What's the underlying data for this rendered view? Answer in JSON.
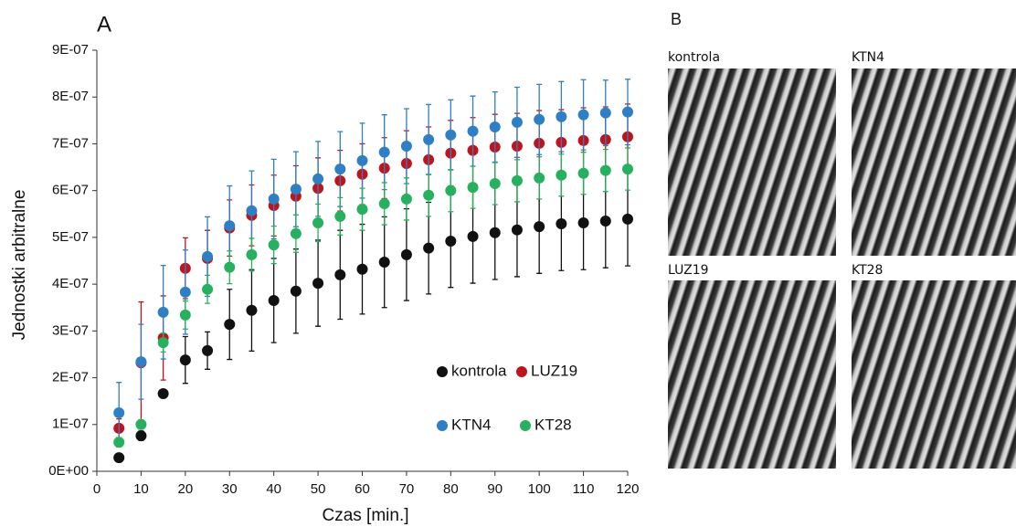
{
  "chart_data": {
    "type": "scatter",
    "panel_label": "A",
    "xlabel": "Czas [min.]",
    "ylabel": "Jednostki arbitralne",
    "x": [
      5,
      10,
      15,
      20,
      25,
      30,
      35,
      40,
      45,
      50,
      55,
      60,
      65,
      70,
      75,
      80,
      85,
      90,
      95,
      100,
      105,
      110,
      115,
      120
    ],
    "xlim": [
      0,
      120
    ],
    "xticks": [
      0,
      10,
      20,
      30,
      40,
      50,
      60,
      70,
      80,
      90,
      100,
      110,
      120
    ],
    "ylim": [
      0,
      9e-07
    ],
    "yticks": [
      {
        "value": 0,
        "label": "0E+00"
      },
      {
        "value": 1e-07,
        "label": "1E-07"
      },
      {
        "value": 2e-07,
        "label": "2E-07"
      },
      {
        "value": 3e-07,
        "label": "3E-07"
      },
      {
        "value": 4e-07,
        "label": "4E-07"
      },
      {
        "value": 5e-07,
        "label": "5E-07"
      },
      {
        "value": 6e-07,
        "label": "6E-07"
      },
      {
        "value": 7e-07,
        "label": "7E-07"
      },
      {
        "value": 8e-07,
        "label": "8E-07"
      },
      {
        "value": 9e-07,
        "label": "9E-07"
      }
    ],
    "series": [
      {
        "name": "kontrola",
        "color": "#111111",
        "values": [
          2.9e-08,
          7.6e-08,
          1.66e-07,
          2.38e-07,
          2.58e-07,
          3.14e-07,
          3.44e-07,
          3.65e-07,
          3.85e-07,
          4.02e-07,
          4.2e-07,
          4.32e-07,
          4.47e-07,
          4.63e-07,
          4.77e-07,
          4.92e-07,
          5.02e-07,
          5.1e-07,
          5.16e-07,
          5.23e-07,
          5.29e-07,
          5.31e-07,
          5.35e-07,
          5.39e-07
        ],
        "errors": [
          3e-09,
          1e-08,
          5e-09,
          5e-08,
          4e-08,
          7.5e-08,
          8.7e-08,
          9e-08,
          9e-08,
          9.2e-08,
          9.5e-08,
          9.6e-08,
          9.7e-08,
          9.8e-08,
          9.8e-08,
          9.9e-08,
          1e-07,
          1e-07,
          1e-07,
          1e-07,
          1e-07,
          1e-07,
          1e-07,
          1e-07
        ]
      },
      {
        "name": "LUZ19",
        "color": "#c0141c",
        "values": [
          9.2e-08,
          2.32e-07,
          2.85e-07,
          4.34e-07,
          4.55e-07,
          5.2e-07,
          5.47e-07,
          5.68e-07,
          5.88e-07,
          6.05e-07,
          6.21e-07,
          6.35e-07,
          6.48e-07,
          6.58e-07,
          6.66e-07,
          6.8e-07,
          6.86e-07,
          6.93e-07,
          6.95e-07,
          7.01e-07,
          7.03e-07,
          7.07e-07,
          7.09e-07,
          7.15e-07
        ],
        "errors": [
          2e-08,
          1.3e-07,
          9e-08,
          6.5e-08,
          6e-08,
          6e-08,
          6.5e-08,
          6.5e-08,
          6.5e-08,
          6.5e-08,
          6.5e-08,
          6.5e-08,
          6.5e-08,
          7e-08,
          7e-08,
          7e-08,
          7e-08,
          7e-08,
          7e-08,
          7e-08,
          7e-08,
          7e-08,
          7e-08,
          7e-08
        ]
      },
      {
        "name": "KTN4",
        "color": "#2e7fc4",
        "values": [
          1.25e-07,
          2.34e-07,
          3.4e-07,
          3.83e-07,
          4.59e-07,
          5.25e-07,
          5.57e-07,
          5.82e-07,
          6.03e-07,
          6.25e-07,
          6.46e-07,
          6.64e-07,
          6.82e-07,
          6.95e-07,
          7.09e-07,
          7.19e-07,
          7.27e-07,
          7.36e-07,
          7.46e-07,
          7.52e-07,
          7.58e-07,
          7.62e-07,
          7.66e-07,
          7.68e-07
        ],
        "errors": [
          6.5e-08,
          8e-08,
          1e-07,
          9e-08,
          8.5e-08,
          8.5e-08,
          8.5e-08,
          8.5e-08,
          8e-08,
          8e-08,
          8e-08,
          8e-08,
          8e-08,
          8e-08,
          7.5e-08,
          7.5e-08,
          7.5e-08,
          7.5e-08,
          7.5e-08,
          7.5e-08,
          7.5e-08,
          7.5e-08,
          7e-08,
          7e-08
        ]
      },
      {
        "name": "KT28",
        "color": "#26b060",
        "values": [
          6.2e-08,
          1e-07,
          2.75e-07,
          3.34e-07,
          3.89e-07,
          4.36e-07,
          4.63e-07,
          4.84e-07,
          5.08e-07,
          5.31e-07,
          5.45e-07,
          5.6e-07,
          5.72e-07,
          5.82e-07,
          5.9e-07,
          6e-07,
          6.07e-07,
          6.15e-07,
          6.21e-07,
          6.27e-07,
          6.33e-07,
          6.37e-07,
          6.43e-07,
          6.46e-07
        ],
        "errors": [
          1e-08,
          1e-08,
          2e-08,
          3e-08,
          3e-08,
          3.5e-08,
          3.5e-08,
          4e-08,
          4e-08,
          4e-08,
          4e-08,
          4.5e-08,
          4.5e-08,
          4.5e-08,
          4.5e-08,
          4.5e-08,
          4.5e-08,
          4.5e-08,
          4.5e-08,
          4.5e-08,
          4.5e-08,
          4.5e-08,
          4.5e-08,
          4.5e-08
        ]
      }
    ]
  },
  "panel_b": {
    "label": "B",
    "images": [
      "kontrola",
      "KTN4",
      "LUZ19",
      "KT28"
    ]
  }
}
